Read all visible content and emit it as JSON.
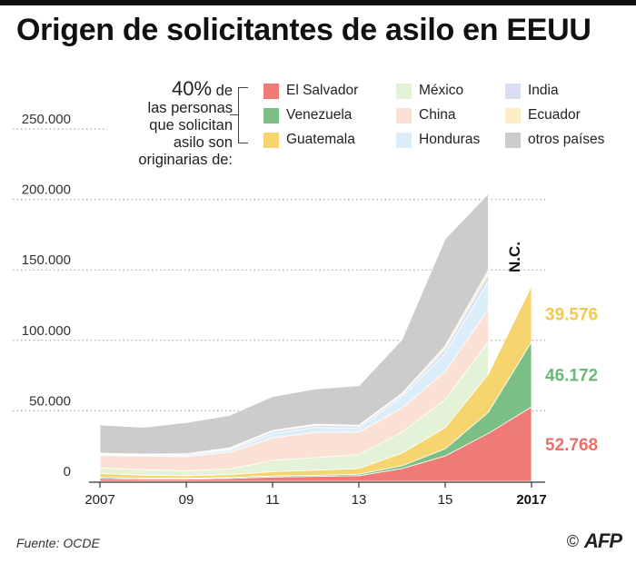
{
  "title": "Origen de solicitantes de asilo en EEUU",
  "legend": {
    "intro_pct": "40%",
    "intro_de": " de",
    "intro_lines": [
      "las personas",
      "que solicitan",
      "asilo son",
      "originarias de:"
    ],
    "items": [
      {
        "label": "El Salvador",
        "color": "#ef7b76"
      },
      {
        "label": "Venezuela",
        "color": "#7bbf84"
      },
      {
        "label": "Guatemala",
        "color": "#f6d56e"
      },
      {
        "label": "México",
        "color": "#e4f2d8"
      },
      {
        "label": "China",
        "color": "#fbe0d5"
      },
      {
        "label": "Honduras",
        "color": "#dcedfa"
      },
      {
        "label": "India",
        "color": "#d9def3"
      },
      {
        "label": "Ecuador",
        "color": "#fcefc8"
      },
      {
        "label": "otros países",
        "color": "#cccccc"
      }
    ]
  },
  "annotations": {
    "nc": "N.C.",
    "end_values": [
      {
        "text": "39.576",
        "color": "#f2c94c"
      },
      {
        "text": "46.172",
        "color": "#6cb878"
      },
      {
        "text": "52.768",
        "color": "#e8716b"
      }
    ]
  },
  "source": "Fuente: OCDE",
  "credit": {
    "copyright": "©",
    "logo": "AFP"
  },
  "chart_data": {
    "type": "area",
    "stacked": true,
    "x": [
      2007,
      2008,
      2009,
      2010,
      2011,
      2012,
      2013,
      2014,
      2015,
      2016,
      2017
    ],
    "x_tick_labels": [
      {
        "x": 2007,
        "label": "2007"
      },
      {
        "x": 2009,
        "label": "09"
      },
      {
        "x": 2011,
        "label": "11"
      },
      {
        "x": 2013,
        "label": "13"
      },
      {
        "x": 2015,
        "label": "15"
      },
      {
        "x": 2017,
        "label": "2017"
      }
    ],
    "y_ticks": [
      0,
      50000,
      100000,
      150000,
      200000,
      250000
    ],
    "y_tick_labels": [
      "0",
      "50.000",
      "100.000",
      "150.000",
      "200.000",
      "250.000"
    ],
    "ylim": [
      0,
      250000
    ],
    "grid": "horizontal-dotted",
    "series": [
      {
        "name": "El Salvador",
        "color": "#ef7b76",
        "values": [
          2000,
          1500,
          1500,
          2000,
          3000,
          3500,
          4000,
          9000,
          18000,
          34000,
          52768
        ]
      },
      {
        "name": "Venezuela",
        "color": "#7bbf84",
        "values": [
          1000,
          800,
          700,
          700,
          800,
          800,
          1000,
          2000,
          5000,
          15000,
          46172
        ]
      },
      {
        "name": "Guatemala",
        "color": "#f6d56e",
        "values": [
          2500,
          2000,
          1800,
          2000,
          3000,
          3500,
          4000,
          9000,
          15000,
          27000,
          39576
        ]
      },
      {
        "name": "México",
        "color": "#e4f2d8",
        "values": [
          4000,
          4000,
          3500,
          4000,
          8000,
          9000,
          10000,
          15000,
          20000,
          23000,
          null
        ]
      },
      {
        "name": "China",
        "color": "#fbe0d5",
        "values": [
          9000,
          9500,
          10000,
          12000,
          16000,
          18000,
          16000,
          17000,
          20000,
          23000,
          null
        ]
      },
      {
        "name": "Honduras",
        "color": "#dcedfa",
        "values": [
          500,
          500,
          800,
          1500,
          3000,
          3500,
          2500,
          8000,
          13000,
          20000,
          null
        ]
      },
      {
        "name": "India",
        "color": "#d9def3",
        "values": [
          500,
          500,
          800,
          800,
          1500,
          1500,
          1500,
          1500,
          3000,
          5000,
          null
        ]
      },
      {
        "name": "Ecuador",
        "color": "#fcefc8",
        "values": [
          500,
          500,
          500,
          700,
          800,
          800,
          800,
          1000,
          2000,
          3000,
          null
        ]
      },
      {
        "name": "otros países",
        "color": "#cccccc",
        "values": [
          20000,
          19000,
          22000,
          23000,
          24000,
          25000,
          28000,
          38000,
          76000,
          54000,
          null
        ]
      }
    ]
  }
}
